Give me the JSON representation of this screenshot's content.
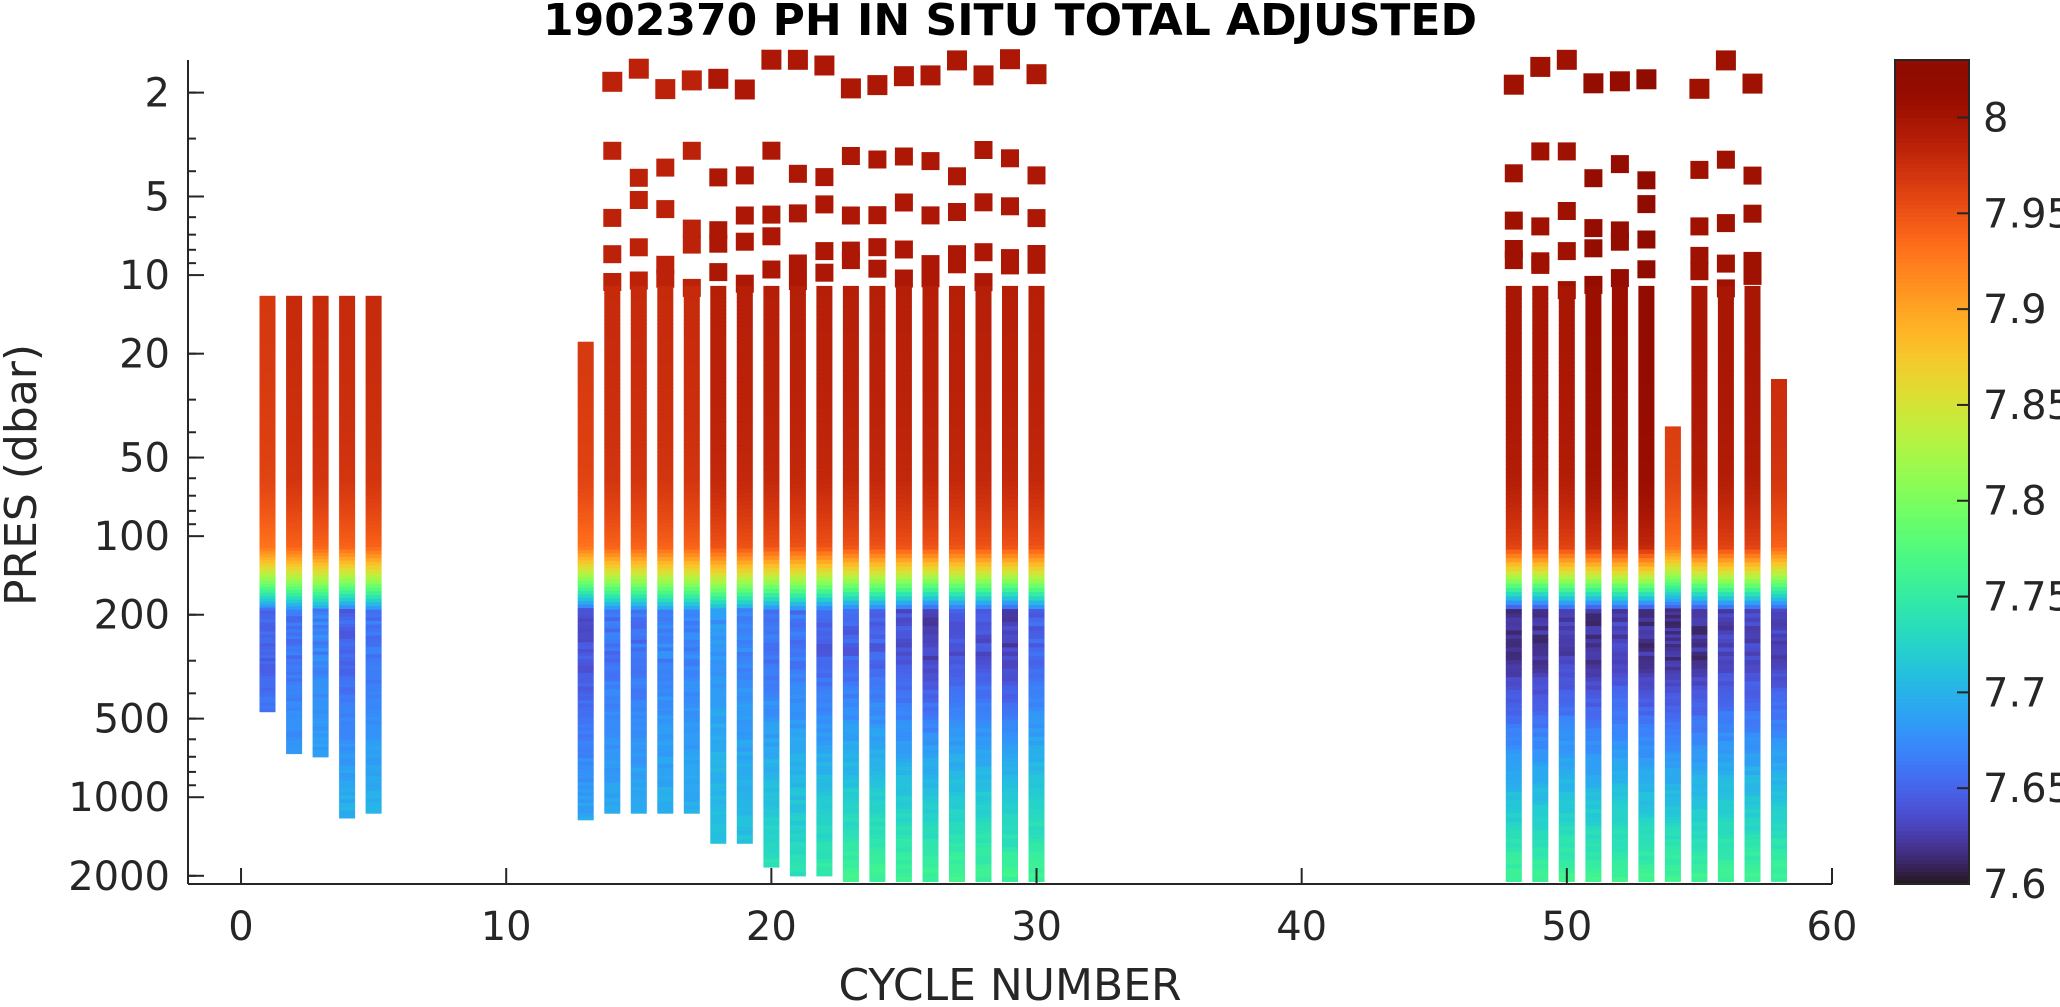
{
  "chart_data": {
    "type": "heatmap",
    "title": "1902370  PH IN SITU TOTAL ADJUSTED",
    "xlabel": "CYCLE NUMBER",
    "ylabel": "PRES (dbar)",
    "x_scale": "linear",
    "y_scale": "log",
    "y_reversed": true,
    "xlim": [
      -2,
      60
    ],
    "ylim": [
      1.5,
      2150
    ],
    "x_ticks": [
      0,
      10,
      20,
      30,
      40,
      50,
      60
    ],
    "x_tick_labels": [
      "0",
      "10",
      "20",
      "30",
      "40",
      "50",
      "60"
    ],
    "y_ticks": [
      2,
      5,
      10,
      20,
      50,
      100,
      200,
      500,
      1000,
      2000
    ],
    "y_tick_labels": [
      "2",
      "5",
      "10",
      "20",
      "50",
      "100",
      "200",
      "500",
      "1000",
      "2000"
    ],
    "colorbar": {
      "label": "",
      "colormap": "turbo",
      "clim": [
        7.6,
        8.03
      ],
      "ticks": [
        7.6,
        7.65,
        7.7,
        7.75,
        7.8,
        7.85,
        7.9,
        7.95,
        8
      ],
      "tick_labels": [
        "7.6",
        "7.65",
        "7.7",
        "7.75",
        "7.8",
        "7.85",
        "7.9",
        "7.95",
        "8"
      ]
    },
    "grid": false,
    "discrete_sample_pressures_dbar": [
      1.7,
      3.8,
      5.9,
      8.0,
      10.0
    ],
    "surface_ph": 7.98,
    "profiles": [
      {
        "cycle": 1,
        "min_pres": 12,
        "max_pres": 470,
        "surface_ph": 7.97,
        "ph_200": 7.65,
        "ph_deep": 7.7
      },
      {
        "cycle": 2,
        "min_pres": 12,
        "max_pres": 680,
        "surface_ph": 7.98,
        "ph_200": 7.66,
        "ph_deep": 7.71
      },
      {
        "cycle": 3,
        "min_pres": 12,
        "max_pres": 700,
        "surface_ph": 7.98,
        "ph_200": 7.67,
        "ph_deep": 7.71
      },
      {
        "cycle": 4,
        "min_pres": 12,
        "max_pres": 1200,
        "surface_ph": 7.98,
        "ph_200": 7.65,
        "ph_deep": 7.72
      },
      {
        "cycle": 5,
        "min_pres": 12,
        "max_pres": 1150,
        "surface_ph": 7.98,
        "ph_200": 7.66,
        "ph_deep": 7.72
      },
      {
        "cycle": 13,
        "min_pres": 18,
        "max_pres": 1220,
        "surface_ph": 7.97,
        "ph_200": 7.64,
        "ph_deep": 7.71
      },
      {
        "cycle": 14,
        "min_pres": 10,
        "max_pres": 1150,
        "surface_ph": 7.98,
        "ph_200": 7.66,
        "ph_deep": 7.71
      },
      {
        "cycle": 15,
        "min_pres": 10,
        "max_pres": 1150,
        "surface_ph": 7.98,
        "ph_200": 7.66,
        "ph_deep": 7.71
      },
      {
        "cycle": 16,
        "min_pres": 10,
        "max_pres": 1150,
        "surface_ph": 7.98,
        "ph_200": 7.67,
        "ph_deep": 7.71
      },
      {
        "cycle": 17,
        "min_pres": 10,
        "max_pres": 1150,
        "surface_ph": 7.98,
        "ph_200": 7.67,
        "ph_deep": 7.71
      },
      {
        "cycle": 18,
        "min_pres": 10,
        "max_pres": 1500,
        "surface_ph": 7.99,
        "ph_200": 7.68,
        "ph_deep": 7.72
      },
      {
        "cycle": 19,
        "min_pres": 10,
        "max_pres": 1500,
        "surface_ph": 7.99,
        "ph_200": 7.67,
        "ph_deep": 7.72
      },
      {
        "cycle": 20,
        "min_pres": 10,
        "max_pres": 1850,
        "surface_ph": 7.99,
        "ph_200": 7.66,
        "ph_deep": 7.74
      },
      {
        "cycle": 21,
        "min_pres": 10,
        "max_pres": 2000,
        "surface_ph": 7.99,
        "ph_200": 7.66,
        "ph_deep": 7.74
      },
      {
        "cycle": 22,
        "min_pres": 10,
        "max_pres": 2000,
        "surface_ph": 7.99,
        "ph_200": 7.65,
        "ph_deep": 7.75
      },
      {
        "cycle": 23,
        "min_pres": 10,
        "max_pres": 2100,
        "surface_ph": 7.99,
        "ph_200": 7.65,
        "ph_deep": 7.76
      },
      {
        "cycle": 24,
        "min_pres": 10,
        "max_pres": 2100,
        "surface_ph": 7.99,
        "ph_200": 7.65,
        "ph_deep": 7.76
      },
      {
        "cycle": 25,
        "min_pres": 10,
        "max_pres": 2100,
        "surface_ph": 7.99,
        "ph_200": 7.64,
        "ph_deep": 7.76
      },
      {
        "cycle": 26,
        "min_pres": 10,
        "max_pres": 2100,
        "surface_ph": 7.99,
        "ph_200": 7.63,
        "ph_deep": 7.76
      },
      {
        "cycle": 27,
        "min_pres": 10,
        "max_pres": 2100,
        "surface_ph": 7.99,
        "ph_200": 7.64,
        "ph_deep": 7.76
      },
      {
        "cycle": 28,
        "min_pres": 10,
        "max_pres": 2100,
        "surface_ph": 7.99,
        "ph_200": 7.64,
        "ph_deep": 7.76
      },
      {
        "cycle": 29,
        "min_pres": 10,
        "max_pres": 2100,
        "surface_ph": 7.99,
        "ph_200": 7.63,
        "ph_deep": 7.76
      },
      {
        "cycle": 30,
        "min_pres": 10,
        "max_pres": 2100,
        "surface_ph": 7.99,
        "ph_200": 7.65,
        "ph_deep": 7.76
      },
      {
        "cycle": 48,
        "min_pres": 10,
        "max_pres": 2100,
        "surface_ph": 8.0,
        "ph_200": 7.62,
        "ph_deep": 7.76
      },
      {
        "cycle": 49,
        "min_pres": 10,
        "max_pres": 2100,
        "surface_ph": 8.0,
        "ph_200": 7.62,
        "ph_deep": 7.76
      },
      {
        "cycle": 50,
        "min_pres": 10,
        "max_pres": 2100,
        "surface_ph": 8.0,
        "ph_200": 7.63,
        "ph_deep": 7.76
      },
      {
        "cycle": 51,
        "min_pres": 10,
        "max_pres": 2100,
        "surface_ph": 8.01,
        "ph_200": 7.62,
        "ph_deep": 7.76
      },
      {
        "cycle": 52,
        "min_pres": 10,
        "max_pres": 2100,
        "surface_ph": 8.01,
        "ph_200": 7.63,
        "ph_deep": 7.76
      },
      {
        "cycle": 53,
        "min_pres": 10,
        "max_pres": 2100,
        "surface_ph": 8.02,
        "ph_200": 7.62,
        "ph_deep": 7.76
      },
      {
        "cycle": 54,
        "min_pres": 38,
        "max_pres": 2100,
        "surface_ph": 7.97,
        "ph_200": 7.62,
        "ph_deep": 7.76
      },
      {
        "cycle": 55,
        "min_pres": 10,
        "max_pres": 2100,
        "surface_ph": 8.0,
        "ph_200": 7.62,
        "ph_deep": 7.76
      },
      {
        "cycle": 56,
        "min_pres": 10,
        "max_pres": 2100,
        "surface_ph": 8.0,
        "ph_200": 7.63,
        "ph_deep": 7.76
      },
      {
        "cycle": 57,
        "min_pres": 10,
        "max_pres": 2100,
        "surface_ph": 8.0,
        "ph_200": 7.63,
        "ph_deep": 7.76
      },
      {
        "cycle": 58,
        "min_pres": 25,
        "max_pres": 2100,
        "surface_ph": 7.98,
        "ph_200": 7.63,
        "ph_deep": 7.76
      }
    ]
  }
}
